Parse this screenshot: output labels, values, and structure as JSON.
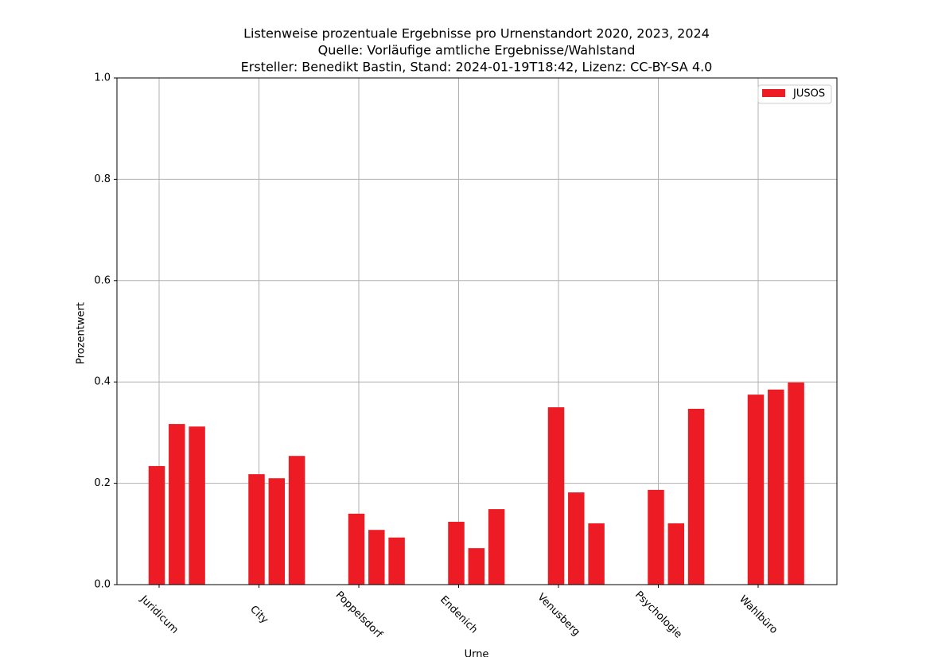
{
  "chart_data": {
    "type": "grouped_bar",
    "title": "Listenweise prozentuale Ergebnisse pro Urnenstandort 2020, 2023, 2024",
    "subtitle": [
      "Quelle: Vorläufige amtliche Ergebnisse/Wahlstand",
      "Ersteller: Benedikt Bastin, Stand: 2024-01-19T18:42, Lizenz: CC-BY-SA 4.0"
    ],
    "x_label": "Urne",
    "y_label": "Prozentwert",
    "categories": [
      "Juridicum",
      "City",
      "Poppelsdorf",
      "Endenich",
      "Venusberg",
      "Psychologie",
      "Wahlbüro"
    ],
    "series": [
      {
        "name": "JUSOS",
        "color": "#ed1c24",
        "values": [
          [
            0.234,
            0.317,
            0.312
          ],
          [
            0.218,
            0.21,
            0.254
          ],
          [
            0.14,
            0.108,
            0.093
          ],
          [
            0.124,
            0.072,
            0.149
          ],
          [
            0.35,
            0.182,
            0.121
          ],
          [
            0.187,
            0.121,
            0.347
          ],
          [
            0.375,
            0.385,
            0.399
          ]
        ]
      }
    ],
    "ylim": [
      0,
      1
    ],
    "yticks": [
      {
        "value": 0,
        "label": "0.0"
      },
      0.2,
      0.4,
      0.6,
      0.8,
      {
        "value": 1,
        "label": "1.0"
      }
    ],
    "grid": true,
    "legend": "upper right"
  }
}
